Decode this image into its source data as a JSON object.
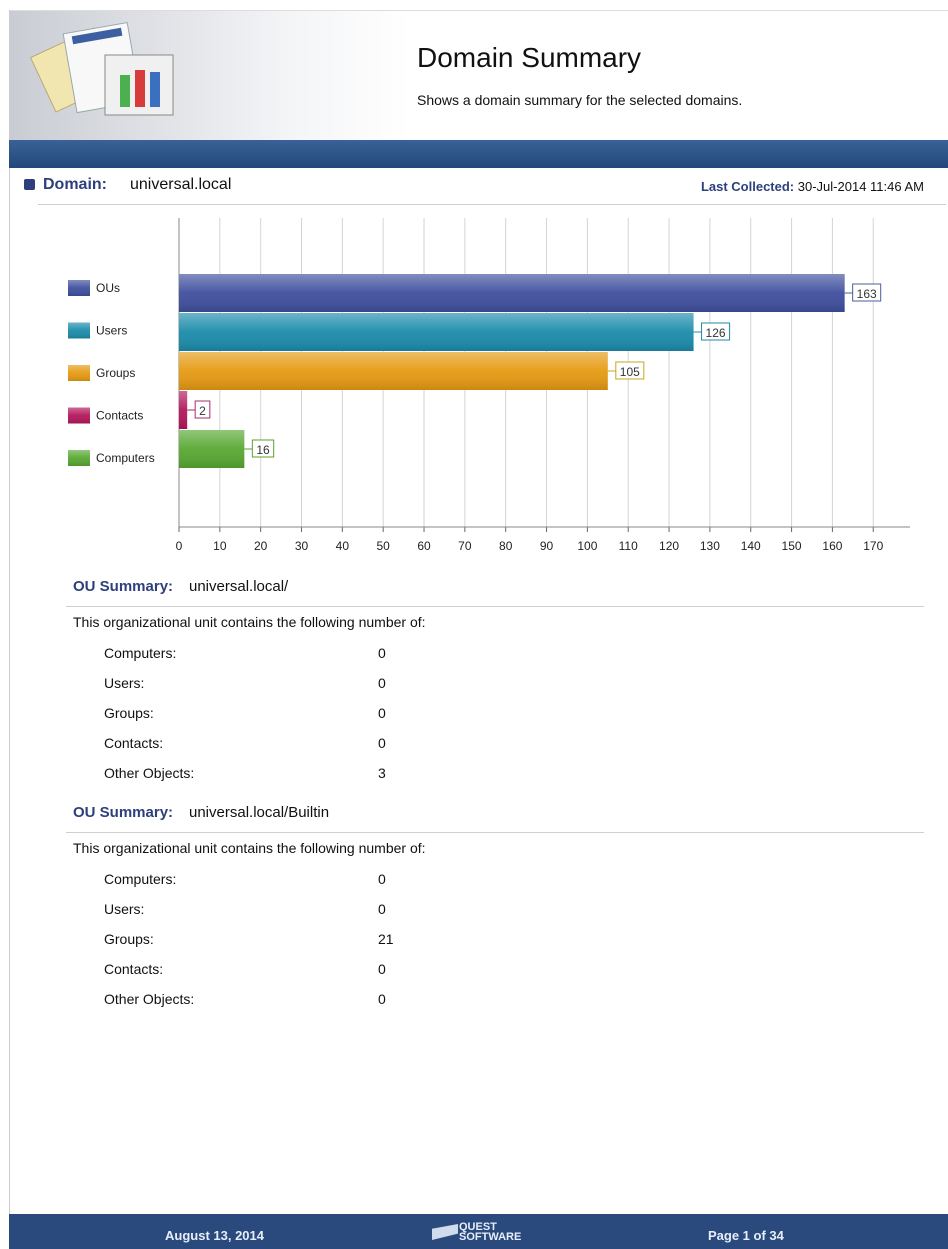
{
  "header": {
    "title": "Domain Summary",
    "subtitle": "Shows a domain summary for the selected domains."
  },
  "domain": {
    "label": "Domain:",
    "name": "universal.local",
    "collected_label": "Last Collected:",
    "collected": "30-Jul-2014 11:46 AM"
  },
  "chart_data": {
    "type": "bar",
    "orientation": "horizontal",
    "categories": [
      "OUs",
      "Users",
      "Groups",
      "Contacts",
      "Computers"
    ],
    "values": [
      163,
      126,
      105,
      2,
      16
    ],
    "colors": [
      "#3f4f9e",
      "#1b8cab",
      "#e69a12",
      "#b3175c",
      "#58a832"
    ],
    "label_colors": [
      "#4c5c9c",
      "#1f8ba6",
      "#c9a51e",
      "#a32e6c",
      "#5aa030"
    ],
    "xlim": [
      0,
      179
    ],
    "xticks": [
      0,
      10,
      20,
      30,
      40,
      50,
      60,
      70,
      80,
      90,
      100,
      110,
      120,
      130,
      140,
      150,
      160,
      170
    ],
    "grid": true
  },
  "ou_summaries": [
    {
      "label": "OU Summary:",
      "path": "universal.local/",
      "intro": "This organizational unit contains the following number of:",
      "rows": [
        [
          "Computers:",
          0
        ],
        [
          "Users:",
          0
        ],
        [
          "Groups:",
          0
        ],
        [
          "Contacts:",
          0
        ],
        [
          "Other Objects:",
          3
        ]
      ]
    },
    {
      "label": "OU Summary:",
      "path": "universal.local/Builtin",
      "intro": "This organizational unit contains the following number of:",
      "rows": [
        [
          "Computers:",
          0
        ],
        [
          "Users:",
          0
        ],
        [
          "Groups:",
          21
        ],
        [
          "Contacts:",
          0
        ],
        [
          "Other Objects:",
          0
        ]
      ]
    }
  ],
  "footer": {
    "date": "August 13, 2014",
    "logo": [
      "QUEST",
      "SOFTWARE"
    ],
    "page": "Page 1 of 34"
  }
}
